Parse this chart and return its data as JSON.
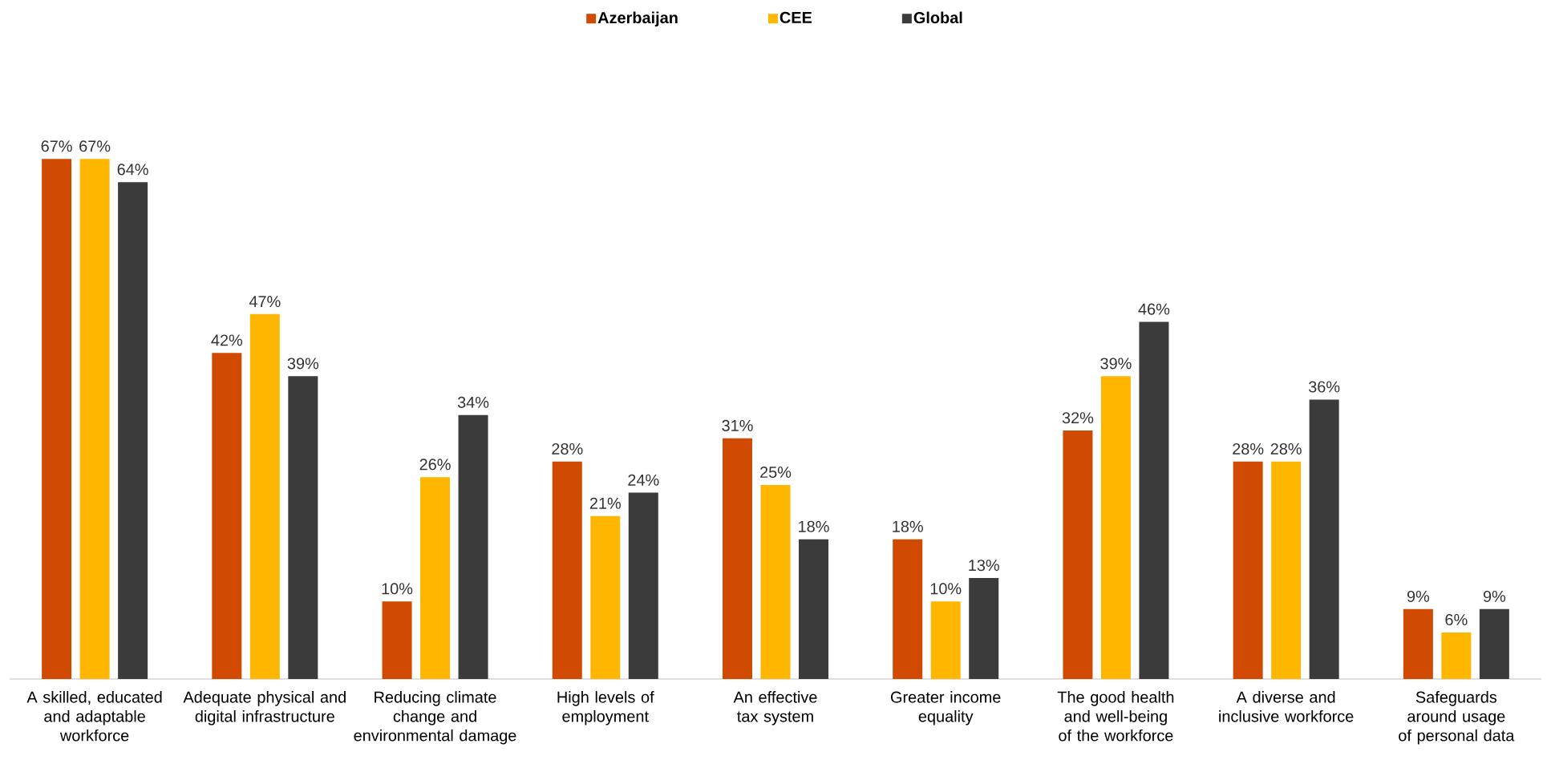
{
  "chart_data": {
    "type": "bar",
    "categories": [
      "A skilled, educated and adaptable workforce",
      "Adequate physical and digital infrastructure",
      "Reducing climate change and environmental damage",
      "High levels of employment",
      "An effective tax system",
      "Greater income equality",
      "The good health and well-being of the workforce",
      "A diverse and inclusive workforce",
      "Safeguards around usage of personal data"
    ],
    "series": [
      {
        "name": "Azerbaijan",
        "color": "#d04a02",
        "values": [
          67,
          42,
          10,
          28,
          31,
          18,
          32,
          28,
          9
        ],
        "value_labels": [
          "67%",
          "42%",
          "10%",
          "28%",
          "31%",
          "18%",
          "32%",
          "28%",
          "9%"
        ]
      },
      {
        "name": "CEE",
        "color": "#ffb600",
        "values": [
          67,
          47,
          26,
          21,
          25,
          10,
          39,
          28,
          6
        ],
        "value_labels": [
          "67%",
          "47%",
          "26%",
          "21%",
          "25%",
          "10%",
          "39%",
          "28%",
          "6%"
        ]
      },
      {
        "name": "Global",
        "color": "#3b3b3b",
        "values": [
          64,
          39,
          34,
          24,
          18,
          13,
          46,
          36,
          9
        ],
        "value_labels": [
          "64%",
          "39%",
          "34%",
          "24%",
          "18%",
          "13%",
          "46%",
          "36%",
          "9%"
        ]
      }
    ],
    "legend": "top"
  }
}
